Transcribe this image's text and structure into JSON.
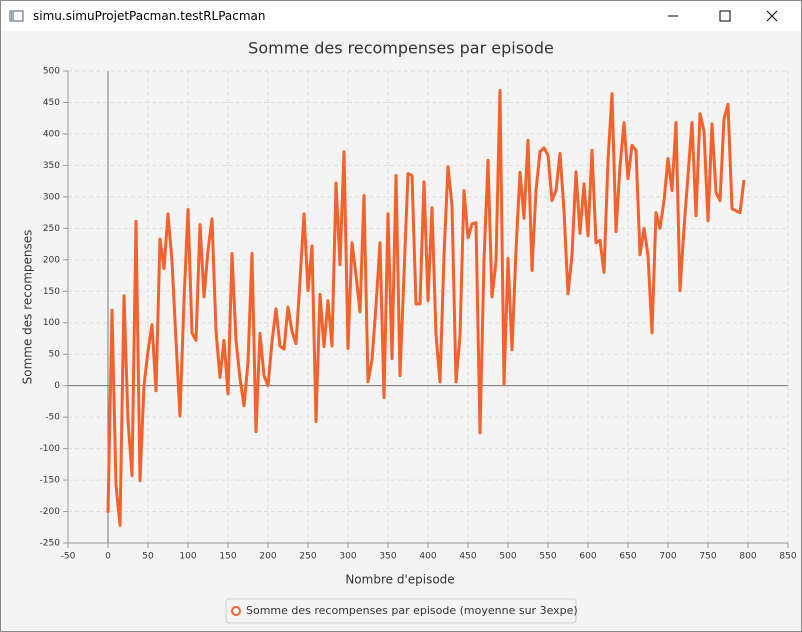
{
  "window_title": "simu.simuProjetPacman.testRLPacman",
  "chart_data": {
    "type": "line",
    "title": "Somme des recompenses par episode",
    "x_label": "Nombre d'episode",
    "y_label": "Somme des recompenses",
    "x": [
      0,
      5,
      10,
      15,
      20,
      25,
      30,
      35,
      40,
      45,
      50,
      55,
      60,
      65,
      70,
      75,
      80,
      85,
      90,
      95,
      100,
      105,
      110,
      115,
      120,
      125,
      130,
      135,
      140,
      145,
      150,
      155,
      160,
      165,
      170,
      175,
      180,
      185,
      190,
      195,
      200,
      205,
      210,
      215,
      220,
      225,
      230,
      235,
      240,
      245,
      250,
      255,
      260,
      265,
      270,
      275,
      280,
      285,
      290,
      295,
      300,
      305,
      310,
      315,
      320,
      325,
      330,
      335,
      340,
      345,
      350,
      355,
      360,
      365,
      370,
      375,
      380,
      385,
      390,
      395,
      400,
      405,
      410,
      415,
      420,
      425,
      430,
      435,
      440,
      445,
      450,
      455,
      460,
      465,
      470,
      475,
      480,
      485,
      490,
      495,
      500,
      505,
      510,
      515,
      520,
      525,
      530,
      535,
      540,
      545,
      550,
      555,
      560,
      565,
      570,
      575,
      580,
      585,
      590,
      595,
      600,
      605,
      610,
      615,
      620,
      625,
      630,
      635,
      640,
      645,
      650,
      655,
      660,
      665,
      670,
      675,
      680,
      685,
      690,
      695,
      700,
      705,
      710,
      715,
      720,
      725,
      730,
      735,
      740,
      745,
      750,
      755,
      760,
      765,
      770,
      775,
      780,
      785,
      790,
      795
    ],
    "series": [
      {
        "name": "Somme des recompenses par episode  (moyenne sur 3expe)",
        "color": "#f3622d",
        "values": [
          -202,
          120,
          -158,
          -222,
          143,
          -55,
          -143,
          261,
          -151,
          0,
          55,
          97,
          -8,
          233,
          186,
          273,
          198,
          72,
          -48,
          135,
          280,
          84,
          72,
          256,
          141,
          215,
          265,
          87,
          13,
          72,
          -13,
          210,
          72,
          12,
          -32,
          37,
          210,
          -73,
          83,
          16,
          0,
          70,
          122,
          63,
          58,
          125,
          86,
          67,
          167,
          273,
          151,
          222,
          -57,
          145,
          62,
          135,
          63,
          322,
          192,
          372,
          59,
          227,
          176,
          117,
          302,
          6,
          41,
          127,
          227,
          -19,
          273,
          43,
          334,
          16,
          176,
          337,
          334,
          130,
          130,
          324,
          135,
          283,
          81,
          6,
          207,
          348,
          286,
          6,
          79,
          310,
          235,
          257,
          259,
          -75,
          199,
          358,
          141,
          197,
          469,
          2,
          202,
          57,
          215,
          339,
          266,
          390,
          183,
          310,
          372,
          378,
          366,
          294,
          310,
          369,
          278,
          146,
          207,
          340,
          242,
          321,
          238,
          374,
          227,
          231,
          180,
          358,
          464,
          245,
          348,
          418,
          329,
          382,
          374,
          208,
          250,
          207,
          84,
          275,
          250,
          294,
          361,
          310,
          418,
          151,
          250,
          334,
          418,
          270,
          432,
          405,
          262,
          416,
          307,
          294,
          424,
          447,
          281,
          278,
          275,
          327
        ]
      }
    ],
    "xlim": [
      -50,
      850
    ],
    "xticks": [
      -50,
      0,
      50,
      100,
      150,
      200,
      250,
      300,
      350,
      400,
      450,
      500,
      550,
      600,
      650,
      700,
      750,
      800,
      850
    ],
    "ylim": [
      -250,
      500
    ],
    "yticks": [
      -250,
      -200,
      -150,
      -100,
      -50,
      0,
      50,
      100,
      150,
      200,
      250,
      300,
      350,
      400,
      450,
      500
    ],
    "grid": true,
    "legend": "bottom"
  }
}
